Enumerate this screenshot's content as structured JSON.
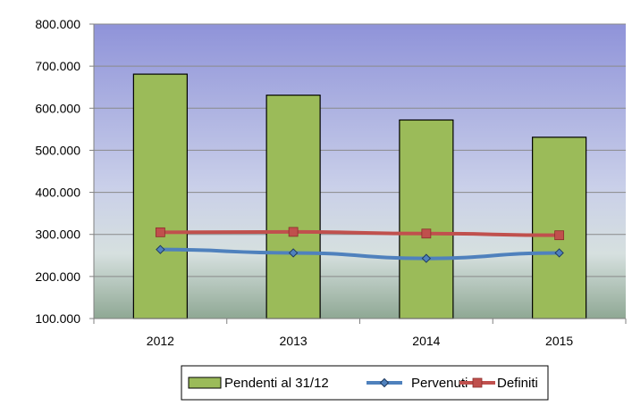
{
  "chart_data": {
    "type": "bar",
    "categories": [
      "2012",
      "2013",
      "2014",
      "2015"
    ],
    "ylim": [
      100000,
      800000
    ],
    "yticks": [
      100000,
      200000,
      300000,
      400000,
      500000,
      600000,
      700000,
      800000
    ],
    "ytick_labels": [
      "100.000",
      "200.000",
      "300.000",
      "400.000",
      "500.000",
      "600.000",
      "700.000",
      "800.000"
    ],
    "title": "",
    "xlabel": "",
    "ylabel": "",
    "grid": true,
    "legend_position": "bottom",
    "series": [
      {
        "name": "Pendenti al 31/12",
        "kind": "bar",
        "color": "#9bbb59",
        "values": [
          681000,
          631000,
          572000,
          531000
        ]
      },
      {
        "name": "Pervenuti",
        "kind": "line",
        "marker": "diamond",
        "color": "#4f81bd",
        "values": [
          264000,
          256000,
          243000,
          256000
        ]
      },
      {
        "name": "Definiti",
        "kind": "line",
        "marker": "square",
        "color": "#c0504d",
        "values": [
          305000,
          306000,
          302000,
          298000
        ]
      }
    ]
  }
}
